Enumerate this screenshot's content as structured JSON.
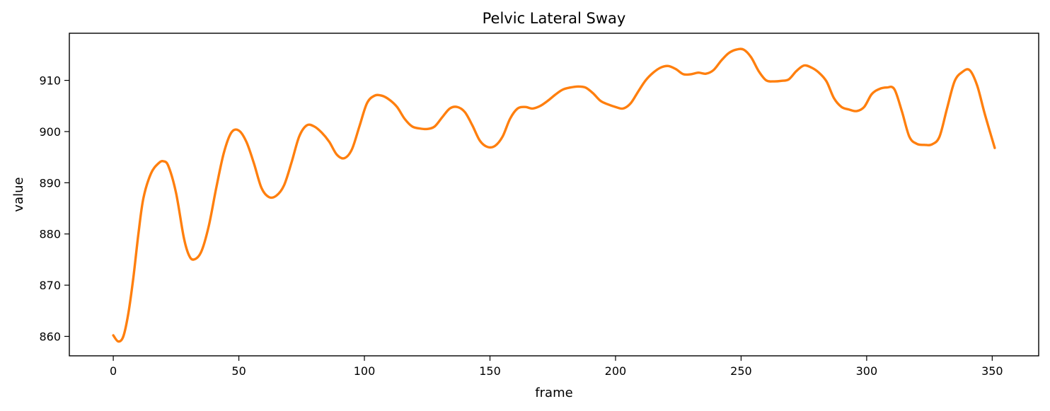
{
  "chart_data": {
    "type": "line",
    "title": "Pelvic Lateral Sway",
    "xlabel": "frame",
    "ylabel": "value",
    "xlim": [
      -17.5,
      368.5
    ],
    "ylim": [
      856.2,
      919.2
    ],
    "xticks": [
      0,
      50,
      100,
      150,
      200,
      250,
      300,
      350
    ],
    "yticks": [
      860,
      870,
      880,
      890,
      900,
      910
    ],
    "grid": false,
    "legend": "none",
    "colors": {
      "series": "#ff7f0e",
      "axes": "#000000",
      "background": "#ffffff"
    },
    "series": [
      {
        "x": [
          0,
          2,
          4,
          6,
          8,
          10,
          12,
          15,
          18,
          20,
          22,
          25,
          28,
          30,
          32,
          35,
          38,
          41,
          44,
          47,
          50,
          53,
          56,
          59,
          62,
          65,
          68,
          71,
          74,
          77,
          80,
          83,
          86,
          89,
          92,
          95,
          98,
          101,
          104,
          107,
          110,
          113,
          116,
          119,
          122,
          125,
          128,
          131,
          134,
          137,
          140,
          143,
          146,
          149,
          152,
          155,
          158,
          161,
          164,
          167,
          170,
          173,
          176,
          179,
          182,
          185,
          188,
          191,
          194,
          197,
          200,
          203,
          206,
          209,
          212,
          215,
          218,
          221,
          224,
          227,
          230,
          233,
          236,
          239,
          242,
          245,
          248,
          251,
          254,
          257,
          260,
          263,
          266,
          269,
          272,
          275,
          278,
          281,
          284,
          287,
          290,
          293,
          296,
          299,
          302,
          305,
          308,
          311,
          314,
          317,
          320,
          323,
          326,
          329,
          332,
          335,
          338,
          341,
          344,
          347,
          351
        ],
        "y": [
          860.2,
          859.0,
          860.0,
          864.5,
          871.5,
          880.0,
          887.0,
          891.8,
          893.8,
          894.2,
          893.2,
          888.0,
          879.5,
          876.0,
          875.0,
          876.5,
          881.5,
          889.0,
          895.8,
          899.8,
          900.2,
          898.0,
          893.8,
          889.0,
          887.2,
          887.5,
          889.5,
          894.0,
          899.0,
          901.2,
          901.0,
          899.8,
          898.0,
          895.5,
          894.8,
          896.5,
          901.0,
          905.5,
          907.0,
          907.0,
          906.2,
          904.8,
          902.5,
          901.0,
          900.6,
          900.5,
          901.0,
          902.8,
          904.5,
          904.8,
          903.8,
          901.2,
          898.2,
          897.0,
          897.2,
          899.0,
          902.5,
          904.5,
          904.8,
          904.5,
          905.0,
          906.0,
          907.2,
          908.2,
          908.6,
          908.8,
          908.6,
          907.5,
          906.0,
          905.3,
          904.8,
          904.5,
          905.5,
          907.8,
          910.0,
          911.5,
          912.5,
          912.8,
          912.2,
          911.2,
          911.2,
          911.5,
          911.3,
          912.0,
          913.8,
          915.3,
          916.0,
          916.0,
          914.5,
          911.8,
          910.0,
          909.8,
          909.9,
          910.2,
          911.8,
          912.9,
          912.5,
          911.5,
          909.8,
          906.5,
          904.8,
          904.3,
          904.0,
          904.8,
          907.3,
          908.3,
          908.6,
          908.3,
          904.0,
          899.0,
          897.6,
          897.4,
          897.5,
          899.0,
          904.5,
          909.8,
          911.6,
          912.0,
          909.0,
          903.5,
          896.8
        ]
      }
    ]
  }
}
